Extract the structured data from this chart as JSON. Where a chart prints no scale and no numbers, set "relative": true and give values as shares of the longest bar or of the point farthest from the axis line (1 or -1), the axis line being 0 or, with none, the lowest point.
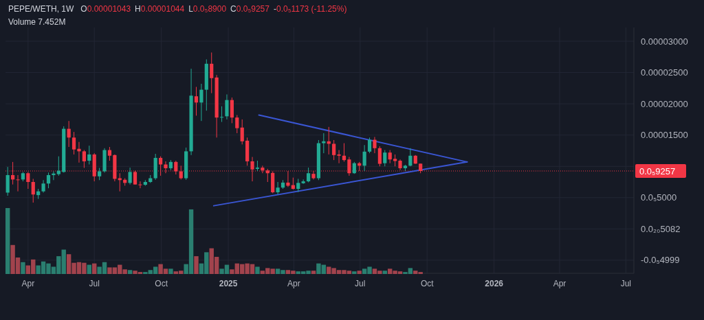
{
  "chart_data": [
    {
      "type": "candlestick",
      "title": "PEPE/WETH, 1W",
      "annotations": [
        "O0.00001043",
        "H0.00001044",
        "L0.0₅8900",
        "C0.0₅9257",
        "-0.0₅1173 (-11.25%)"
      ],
      "x": [
        "2024-03-04",
        "2024-03-11",
        "2024-03-18",
        "2024-03-25",
        "2024-04-01",
        "2024-04-08",
        "2024-04-15",
        "2024-04-22",
        "2024-04-29",
        "2024-05-06",
        "2024-05-13",
        "2024-05-20",
        "2024-05-27",
        "2024-06-03",
        "2024-06-10",
        "2024-06-17",
        "2024-06-24",
        "2024-07-01",
        "2024-07-08",
        "2024-07-15",
        "2024-07-22",
        "2024-07-29",
        "2024-08-05",
        "2024-08-12",
        "2024-08-19",
        "2024-08-26",
        "2024-09-02",
        "2024-09-09",
        "2024-09-16",
        "2024-09-23",
        "2024-09-30",
        "2024-10-07",
        "2024-10-14",
        "2024-10-21",
        "2024-10-28",
        "2024-11-04",
        "2024-11-11",
        "2024-11-18",
        "2024-11-25",
        "2024-12-02",
        "2024-12-09",
        "2024-12-16",
        "2024-12-23",
        "2024-12-30",
        "2025-01-06",
        "2025-01-13",
        "2025-01-20",
        "2025-01-27",
        "2025-02-03",
        "2025-02-10",
        "2025-02-17",
        "2025-02-24",
        "2025-03-03",
        "2025-03-10",
        "2025-03-17",
        "2025-03-24",
        "2025-03-31",
        "2025-04-07",
        "2025-04-14",
        "2025-04-21",
        "2025-04-28",
        "2025-05-05",
        "2025-05-12",
        "2025-05-19",
        "2025-05-26",
        "2025-06-02",
        "2025-06-09",
        "2025-06-16",
        "2025-06-23",
        "2025-06-30",
        "2025-07-07",
        "2025-07-14",
        "2025-07-21",
        "2025-07-28",
        "2025-08-04",
        "2025-08-11",
        "2025-08-18",
        "2025-08-25",
        "2025-09-01",
        "2025-09-08",
        "2025-09-15",
        "2025-09-22"
      ],
      "ohlc": [
        [
          5.8e-06,
          9.9e-06,
          5.3e-06,
          8.6e-06
        ],
        [
          8.6e-06,
          1.07e-05,
          7.1e-06,
          7.9e-06
        ],
        [
          7.9e-06,
          8.6e-06,
          6e-06,
          7.85e-06
        ],
        [
          7.9e-06,
          9.1e-06,
          7.6e-06,
          8.9e-06
        ],
        [
          8.9e-06,
          9.1e-06,
          6.4e-06,
          7.5e-06
        ],
        [
          7.5e-06,
          8e-06,
          4.2e-06,
          5.5e-06
        ],
        [
          5.4e-06,
          6.4e-06,
          4.8e-06,
          6e-06
        ],
        [
          6e-06,
          7.8e-06,
          5.8e-06,
          7.25e-06
        ],
        [
          7.25e-06,
          9e-06,
          6.5e-06,
          8.6e-06
        ],
        [
          8.6e-06,
          9.2e-06,
          7.8e-06,
          8.85e-06
        ],
        [
          8.75e-06,
          1.16e-05,
          8.5e-06,
          9.3e-06
        ],
        [
          9.1e-06,
          1.64e-05,
          9e-06,
          1.6e-05
        ],
        [
          1.6e-05,
          1.725e-05,
          1.31e-05,
          1.46e-05
        ],
        [
          1.46e-05,
          1.55e-05,
          1.19e-05,
          1.27e-05
        ],
        [
          1.28e-05,
          1.39e-05,
          1.06e-05,
          1.24e-05
        ],
        [
          1.24e-05,
          1.26e-05,
          9.75e-06,
          1.08e-05
        ],
        [
          1.09e-05,
          1.33e-05,
          1.03e-05,
          1.19e-05
        ],
        [
          1.19e-05,
          1.21e-05,
          7.6e-06,
          8.4e-06
        ],
        [
          8.4e-06,
          9.75e-06,
          7.8e-06,
          9.2e-06
        ],
        [
          9.2e-06,
          1.29e-05,
          9e-06,
          1.26e-05
        ],
        [
          1.26e-05,
          1.31e-05,
          1.09e-05,
          1.17e-05
        ],
        [
          1.18e-05,
          1.19e-05,
          7.6e-06,
          8e-06
        ],
        [
          8.1e-06,
          8.9e-06,
          6e-06,
          7.8e-06
        ],
        [
          7.85e-06,
          8.1e-06,
          6.9e-06,
          7.35e-06
        ],
        [
          7.35e-06,
          9.8e-06,
          7.1e-06,
          9.1e-06
        ],
        [
          9.1e-06,
          9.3e-06,
          7.1e-06,
          7.1e-06
        ],
        [
          7.1e-06,
          7.6e-06,
          6.5e-06,
          7.05e-06
        ],
        [
          7.05e-06,
          7.8e-06,
          6.9e-06,
          7.5e-06
        ],
        [
          7.5e-06,
          8.6e-06,
          7.35e-06,
          8.1e-06
        ],
        [
          8.1e-06,
          1.2e-05,
          7.85e-06,
          1.135e-05
        ],
        [
          1.135e-05,
          1.16e-05,
          8.5e-06,
          1.03e-05
        ],
        [
          1.03e-05,
          1.08e-05,
          8.9e-06,
          9.7e-06
        ],
        [
          9.7e-06,
          1.1e-05,
          9.4e-06,
          1.07e-05
        ],
        [
          1.07e-05,
          1.09e-05,
          8.7e-06,
          9.2e-06
        ],
        [
          9.2e-06,
          1.01e-05,
          7.9e-06,
          8.1e-06
        ],
        [
          8.1e-06,
          1.3e-05,
          7.85e-06,
          1.24e-05
        ],
        [
          1.24e-05,
          2.56e-05,
          1.18e-05,
          2.13e-05
        ],
        [
          2.12e-05,
          2.27e-05,
          1.81e-05,
          2.02e-05
        ],
        [
          2.02e-05,
          2.32e-05,
          1.725e-05,
          2.225e-05
        ],
        [
          2.225e-05,
          2.71e-05,
          1.89e-05,
          2.64e-05
        ],
        [
          2.64e-05,
          2.82e-05,
          2.17e-05,
          2.41e-05
        ],
        [
          2.42e-05,
          2.46e-05,
          1.46e-05,
          1.78e-05
        ],
        [
          1.78e-05,
          1.96e-05,
          1.71e-05,
          1.79e-05
        ],
        [
          1.8e-05,
          2.15e-05,
          1.75e-05,
          2.06e-05
        ],
        [
          2.06e-05,
          2.1e-05,
          1.69e-05,
          1.78e-05
        ],
        [
          1.78e-05,
          1.82e-05,
          1.53e-05,
          1.61e-05
        ],
        [
          1.62e-05,
          1.75e-05,
          1.35e-05,
          1.4e-05
        ],
        [
          1.41e-05,
          1.46e-05,
          1.01e-05,
          1.08e-05
        ],
        [
          1.08e-05,
          1.15e-05,
          7.6e-06,
          9.5e-06
        ],
        [
          9.6e-06,
          1.09e-05,
          9.25e-06,
          9.8e-06
        ],
        [
          9.8e-06,
          1.01e-05,
          8.9e-06,
          9.35e-06
        ],
        [
          9.35e-06,
          9.6e-06,
          7.5e-06,
          8.9e-06
        ],
        [
          8.95e-06,
          9.2e-06,
          5.7e-06,
          5.85e-06
        ],
        [
          5.85e-06,
          7.5e-06,
          5.5e-06,
          6.6e-06
        ],
        [
          6.6e-06,
          7.8e-06,
          6.4e-06,
          7.4e-06
        ],
        [
          7.4e-06,
          9.25e-06,
          6.7e-06,
          6.9e-06
        ],
        [
          7e-06,
          8.2e-06,
          6.3e-06,
          6.4e-06
        ],
        [
          6.4e-06,
          8e-06,
          5.9e-06,
          7.35e-06
        ],
        [
          7.3e-06,
          7.9e-06,
          7.2e-06,
          7.6e-06
        ],
        [
          7.6e-06,
          9.8e-06,
          7.45e-06,
          8.9e-06
        ],
        [
          8.8e-06,
          9.25e-06,
          7.9e-06,
          8.1e-06
        ],
        [
          8.1e-06,
          1.42e-05,
          7.8e-06,
          1.37e-05
        ],
        [
          1.37e-05,
          1.53e-05,
          1.21e-05,
          1.4e-05
        ],
        [
          1.4e-05,
          1.63e-05,
          1.19e-05,
          1.36e-05
        ],
        [
          1.36e-05,
          1.42e-05,
          1.1e-05,
          1.18e-05
        ],
        [
          1.19e-05,
          1.26e-05,
          1.05e-05,
          1.17e-05
        ],
        [
          1.17e-05,
          1.37e-05,
          1.075e-05,
          1.1e-05
        ],
        [
          1.11e-05,
          1.15e-05,
          8.5e-06,
          8.9e-06
        ],
        [
          8.9e-06,
          1.07e-05,
          8.8e-06,
          1.05e-05
        ],
        [
          1.05e-05,
          1.07e-05,
          9.25e-06,
          1.01e-05
        ],
        [
          1.01e-05,
          1.34e-05,
          9.25e-06,
          1.235e-05
        ],
        [
          1.235e-05,
          1.46e-05,
          1.21e-05,
          1.425e-05
        ],
        [
          1.425e-05,
          1.47e-05,
          1.21e-05,
          1.29e-05
        ],
        [
          1.29e-05,
          1.32e-05,
          1e-05,
          1.04e-05
        ],
        [
          1.05e-05,
          1.26e-05,
          1e-05,
          1.22e-05
        ],
        [
          1.22e-05,
          1.26e-05,
          1.05e-05,
          1.11e-05
        ],
        [
          1.12e-05,
          1.19e-05,
          1e-05,
          1.085e-05
        ],
        [
          1.09e-05,
          1.11e-05,
          9.4e-06,
          9.7e-06
        ],
        [
          9.7e-06,
          1.025e-05,
          9.25e-06,
          1.01e-05
        ],
        [
          1.01e-05,
          1.29e-05,
          1e-05,
          1.17e-05
        ],
        [
          1.17e-05,
          1.18e-05,
          1.04e-05,
          1.043e-05
        ],
        [
          1.043e-05,
          1.044e-05,
          8.9e-06,
          9.257e-06
        ]
      ],
      "colors": [
        "#22ab94",
        "#f23645",
        "#f23645",
        "#22ab94",
        "#f23645",
        "#f23645",
        "#22ab94",
        "#22ab94",
        "#22ab94",
        "#22ab94",
        "#22ab94",
        "#22ab94",
        "#f23645",
        "#f23645",
        "#f23645",
        "#f23645",
        "#22ab94",
        "#f23645",
        "#22ab94",
        "#22ab94",
        "#f23645",
        "#f23645",
        "#f23645",
        "#f23645",
        "#22ab94",
        "#f23645",
        "#f23645",
        "#22ab94",
        "#22ab94",
        "#22ab94",
        "#f23645",
        "#f23645",
        "#22ab94",
        "#f23645",
        "#f23645",
        "#22ab94",
        "#22ab94",
        "#f23645",
        "#22ab94",
        "#22ab94",
        "#f23645",
        "#f23645",
        "#22ab94",
        "#22ab94",
        "#f23645",
        "#f23645",
        "#f23645",
        "#f23645",
        "#f23645",
        "#22ab94",
        "#f23645",
        "#f23645",
        "#f23645",
        "#22ab94",
        "#22ab94",
        "#f23645",
        "#f23645",
        "#22ab94",
        "#22ab94",
        "#22ab94",
        "#f23645",
        "#22ab94",
        "#22ab94",
        "#f23645",
        "#f23645",
        "#f23645",
        "#f23645",
        "#f23645",
        "#22ab94",
        "#f23645",
        "#22ab94",
        "#22ab94",
        "#f23645",
        "#f23645",
        "#22ab94",
        "#f23645",
        "#f23645",
        "#f23645",
        "#22ab94",
        "#22ab94",
        "#f23645",
        "#f23645"
      ],
      "series": [
        {
          "type": "line",
          "color": "#3a56d4",
          "x": [
            "2025-02-12",
            "2025-11-25"
          ],
          "values": [
            1.82e-05,
            1.07e-05
          ]
        },
        {
          "type": "line",
          "color": "#3a56d4",
          "x": [
            "2024-12-12",
            "2025-11-25"
          ],
          "values": [
            3.7e-06,
            1.07e-05
          ]
        }
      ],
      "ref_lines": [
        {
          "axis": "y",
          "value": 9.257e-06,
          "label": "0.0₅9257",
          "color": "#f23645",
          "line_style": "dotted"
        }
      ],
      "xlim": [
        "2024-03-01",
        "2026-07-12"
      ],
      "xticks": [
        {
          "value": "2024-04-01",
          "label": "Apr"
        },
        {
          "value": "2024-07-01",
          "label": "Jul"
        },
        {
          "value": "2024-10-01",
          "label": "Oct"
        },
        {
          "value": "2025-01-01",
          "label": "2025"
        },
        {
          "value": "2025-04-01",
          "label": "Apr"
        },
        {
          "value": "2025-07-01",
          "label": "Jul"
        },
        {
          "value": "2025-10-01",
          "label": "Oct"
        },
        {
          "value": "2026-01-01",
          "label": "2026"
        },
        {
          "value": "2026-04-01",
          "label": "Apr"
        },
        {
          "value": "2026-07-01",
          "label": "Jul"
        }
      ],
      "ylim": [
        -7.1e-06,
        3.22e-05
      ],
      "yticks": [
        {
          "value": -4.999e-06,
          "label": "-0.0₅4999"
        },
        {
          "value": 5.082e-21,
          "label": "0.0₂₀5082"
        },
        {
          "value": 5e-06,
          "label": "0.0₅5000"
        },
        {
          "value": 1e-05,
          "label": null
        },
        {
          "value": 1.5e-05,
          "label": "0.00001500"
        },
        {
          "value": 2e-05,
          "label": "0.00002000"
        },
        {
          "value": 2.5e-05,
          "label": "0.00002500"
        },
        {
          "value": 3e-05,
          "label": "0.00003000"
        }
      ],
      "grid": true
    },
    {
      "type": "bar",
      "relative": true,
      "tick_labels": false,
      "annotations": [
        "Volume 7.452M"
      ],
      "xlim": [
        "2024-03-01",
        "2026-07-12"
      ],
      "x": [
        "2024-03-04",
        "2024-03-11",
        "2024-03-18",
        "2024-03-25",
        "2024-04-01",
        "2024-04-08",
        "2024-04-15",
        "2024-04-22",
        "2024-04-29",
        "2024-05-06",
        "2024-05-13",
        "2024-05-20",
        "2024-05-27",
        "2024-06-03",
        "2024-06-10",
        "2024-06-17",
        "2024-06-24",
        "2024-07-01",
        "2024-07-08",
        "2024-07-15",
        "2024-07-22",
        "2024-07-29",
        "2024-08-05",
        "2024-08-12",
        "2024-08-19",
        "2024-08-26",
        "2024-09-02",
        "2024-09-09",
        "2024-09-16",
        "2024-09-23",
        "2024-09-30",
        "2024-10-07",
        "2024-10-14",
        "2024-10-21",
        "2024-10-28",
        "2024-11-04",
        "2024-11-11",
        "2024-11-18",
        "2024-11-25",
        "2024-12-02",
        "2024-12-09",
        "2024-12-16",
        "2024-12-23",
        "2024-12-30",
        "2025-01-06",
        "2025-01-13",
        "2025-01-20",
        "2025-01-27",
        "2025-02-03",
        "2025-02-10",
        "2025-02-17",
        "2025-02-24",
        "2025-03-03",
        "2025-03-10",
        "2025-03-17",
        "2025-03-24",
        "2025-03-31",
        "2025-04-07",
        "2025-04-14",
        "2025-04-21",
        "2025-04-28",
        "2025-05-05",
        "2025-05-12",
        "2025-05-19",
        "2025-05-26",
        "2025-06-02",
        "2025-06-09",
        "2025-06-16",
        "2025-06-23",
        "2025-06-30",
        "2025-07-07",
        "2025-07-14",
        "2025-07-21",
        "2025-07-28",
        "2025-08-04",
        "2025-08-11",
        "2025-08-18",
        "2025-08-25",
        "2025-09-01",
        "2025-09-08",
        "2025-09-15",
        "2025-09-22"
      ],
      "values": [
        1.0,
        0.44,
        0.25,
        0.18,
        0.13,
        0.22,
        0.13,
        0.19,
        0.16,
        0.11,
        0.27,
        0.37,
        0.3,
        0.17,
        0.18,
        0.17,
        0.14,
        0.16,
        0.11,
        0.18,
        0.1,
        0.1,
        0.14,
        0.07,
        0.06,
        0.05,
        0.03,
        0.03,
        0.06,
        0.11,
        0.15,
        0.08,
        0.08,
        0.04,
        0.05,
        0.15,
        0.98,
        0.27,
        0.16,
        0.33,
        0.39,
        0.26,
        0.08,
        0.14,
        0.07,
        0.16,
        0.15,
        0.16,
        0.15,
        0.11,
        0.05,
        0.09,
        0.08,
        0.08,
        0.06,
        0.06,
        0.05,
        0.04,
        0.04,
        0.05,
        0.05,
        0.16,
        0.14,
        0.11,
        0.09,
        0.06,
        0.06,
        0.05,
        0.04,
        0.05,
        0.08,
        0.11,
        0.08,
        0.05,
        0.05,
        0.08,
        0.05,
        0.04,
        0.03,
        0.09,
        0.05,
        0.03
      ],
      "colors": [
        "#2a7f70",
        "#a2434d",
        "#a2434d",
        "#2a7f70",
        "#a2434d",
        "#a2434d",
        "#2a7f70",
        "#2a7f70",
        "#2a7f70",
        "#2a7f70",
        "#2a7f70",
        "#2a7f70",
        "#a2434d",
        "#a2434d",
        "#a2434d",
        "#a2434d",
        "#2a7f70",
        "#a2434d",
        "#2a7f70",
        "#2a7f70",
        "#a2434d",
        "#a2434d",
        "#a2434d",
        "#a2434d",
        "#2a7f70",
        "#a2434d",
        "#a2434d",
        "#2a7f70",
        "#2a7f70",
        "#2a7f70",
        "#a2434d",
        "#a2434d",
        "#2a7f70",
        "#a2434d",
        "#a2434d",
        "#2a7f70",
        "#2a7f70",
        "#a2434d",
        "#2a7f70",
        "#2a7f70",
        "#a2434d",
        "#a2434d",
        "#2a7f70",
        "#2a7f70",
        "#a2434d",
        "#a2434d",
        "#a2434d",
        "#a2434d",
        "#a2434d",
        "#2a7f70",
        "#a2434d",
        "#a2434d",
        "#a2434d",
        "#2a7f70",
        "#2a7f70",
        "#a2434d",
        "#a2434d",
        "#2a7f70",
        "#2a7f70",
        "#2a7f70",
        "#a2434d",
        "#2a7f70",
        "#2a7f70",
        "#a2434d",
        "#a2434d",
        "#a2434d",
        "#a2434d",
        "#a2434d",
        "#2a7f70",
        "#a2434d",
        "#2a7f70",
        "#2a7f70",
        "#a2434d",
        "#a2434d",
        "#2a7f70",
        "#a2434d",
        "#a2434d",
        "#a2434d",
        "#2a7f70",
        "#2a7f70",
        "#a2434d",
        "#a2434d"
      ]
    }
  ]
}
